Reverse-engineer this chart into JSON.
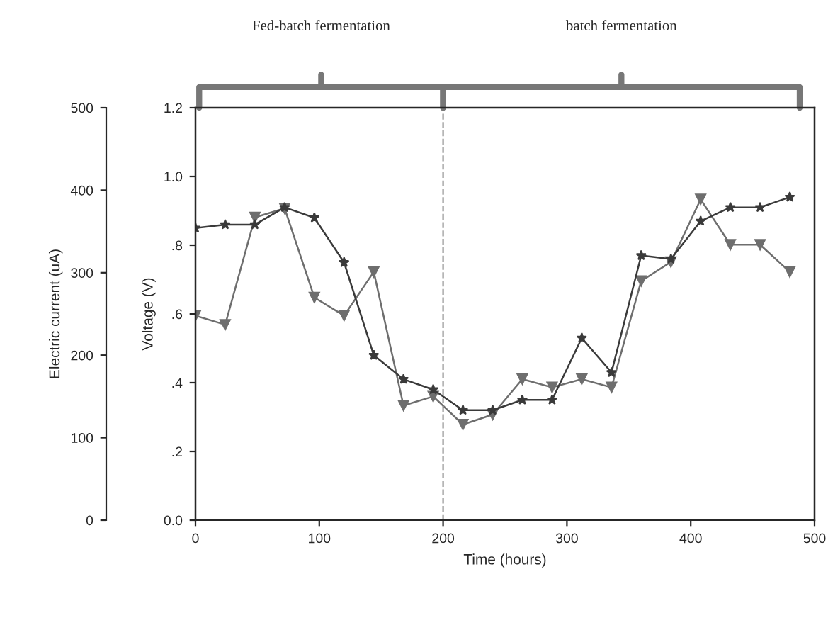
{
  "chart_data": {
    "type": "line",
    "xlabel": "Time (hours)",
    "ylabel": "Electric current (uA)",
    "y2label": "Voltage (V)",
    "x": [
      0,
      24,
      48,
      72,
      96,
      120,
      144,
      168,
      192,
      216,
      240,
      264,
      288,
      312,
      336,
      360,
      384,
      408,
      432,
      456,
      480
    ],
    "series": [
      {
        "color": "#3a3a3a",
        "marker": "star",
        "axis": "y2",
        "values": [
          0.85,
          0.86,
          0.86,
          0.91,
          0.88,
          0.75,
          0.48,
          0.41,
          0.38,
          0.32,
          0.32,
          0.35,
          0.35,
          0.53,
          0.43,
          0.77,
          0.76,
          0.87,
          0.91,
          0.91,
          0.94
        ]
      },
      {
        "color": "#6e6e6e",
        "marker": "triangle",
        "values": [
          248,
          237,
          367,
          378,
          270,
          248,
          301,
          139,
          150,
          116,
          128,
          171,
          161,
          171,
          161,
          290,
          313,
          389,
          334,
          334,
          301
        ]
      }
    ],
    "xlim": [
      0,
      500
    ],
    "xticks": [
      0,
      100,
      200,
      300,
      400,
      500
    ],
    "ylim": [
      0,
      500
    ],
    "yticks": [
      0,
      100,
      200,
      300,
      400,
      500
    ],
    "y2lim": [
      0,
      1.2
    ],
    "y2ticks": [
      {
        "value": 0,
        "label": "0.0"
      },
      {
        "value": 0.2,
        "label": ".2"
      },
      {
        "value": 0.4,
        "label": ".4"
      },
      {
        "value": 0.6,
        "label": ".6"
      },
      {
        "value": 0.8,
        "label": ".8"
      },
      {
        "value": 1.0,
        "label": "1.0"
      },
      {
        "value": 1.2,
        "label": "1.2"
      }
    ],
    "ref_lines": [
      {
        "axis": "x",
        "value": 200,
        "color": "#999999",
        "line_style": "dashed"
      }
    ],
    "annotations": [
      "Fed-batch fermentation",
      "batch fermentation"
    ],
    "grid": false,
    "legend": false
  }
}
